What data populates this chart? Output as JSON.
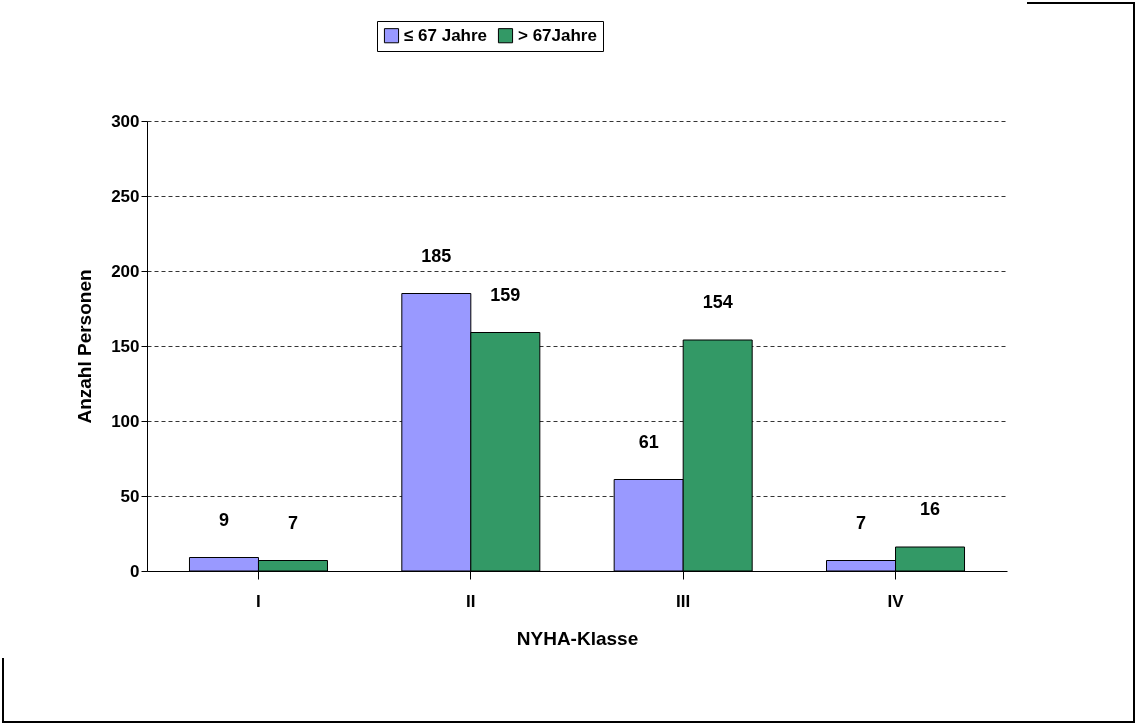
{
  "chart_data": {
    "type": "bar",
    "xlabel": "NYHA-Klasse",
    "ylabel": "Anzahl Personen",
    "categories": [
      "I",
      "II",
      "III",
      "IV"
    ],
    "series": [
      {
        "name": "≤ 67 Jahre",
        "color": "#9999ff",
        "values": [
          9,
          185,
          61,
          7
        ]
      },
      {
        "name": "> 67Jahre",
        "color": "#339966",
        "values": [
          7,
          159,
          154,
          16
        ]
      }
    ],
    "ylim": [
      0,
      300
    ],
    "yticks": [
      0,
      50,
      100,
      150,
      200,
      250,
      300
    ],
    "grid": "y",
    "legend": "top",
    "data_labels": true
  }
}
